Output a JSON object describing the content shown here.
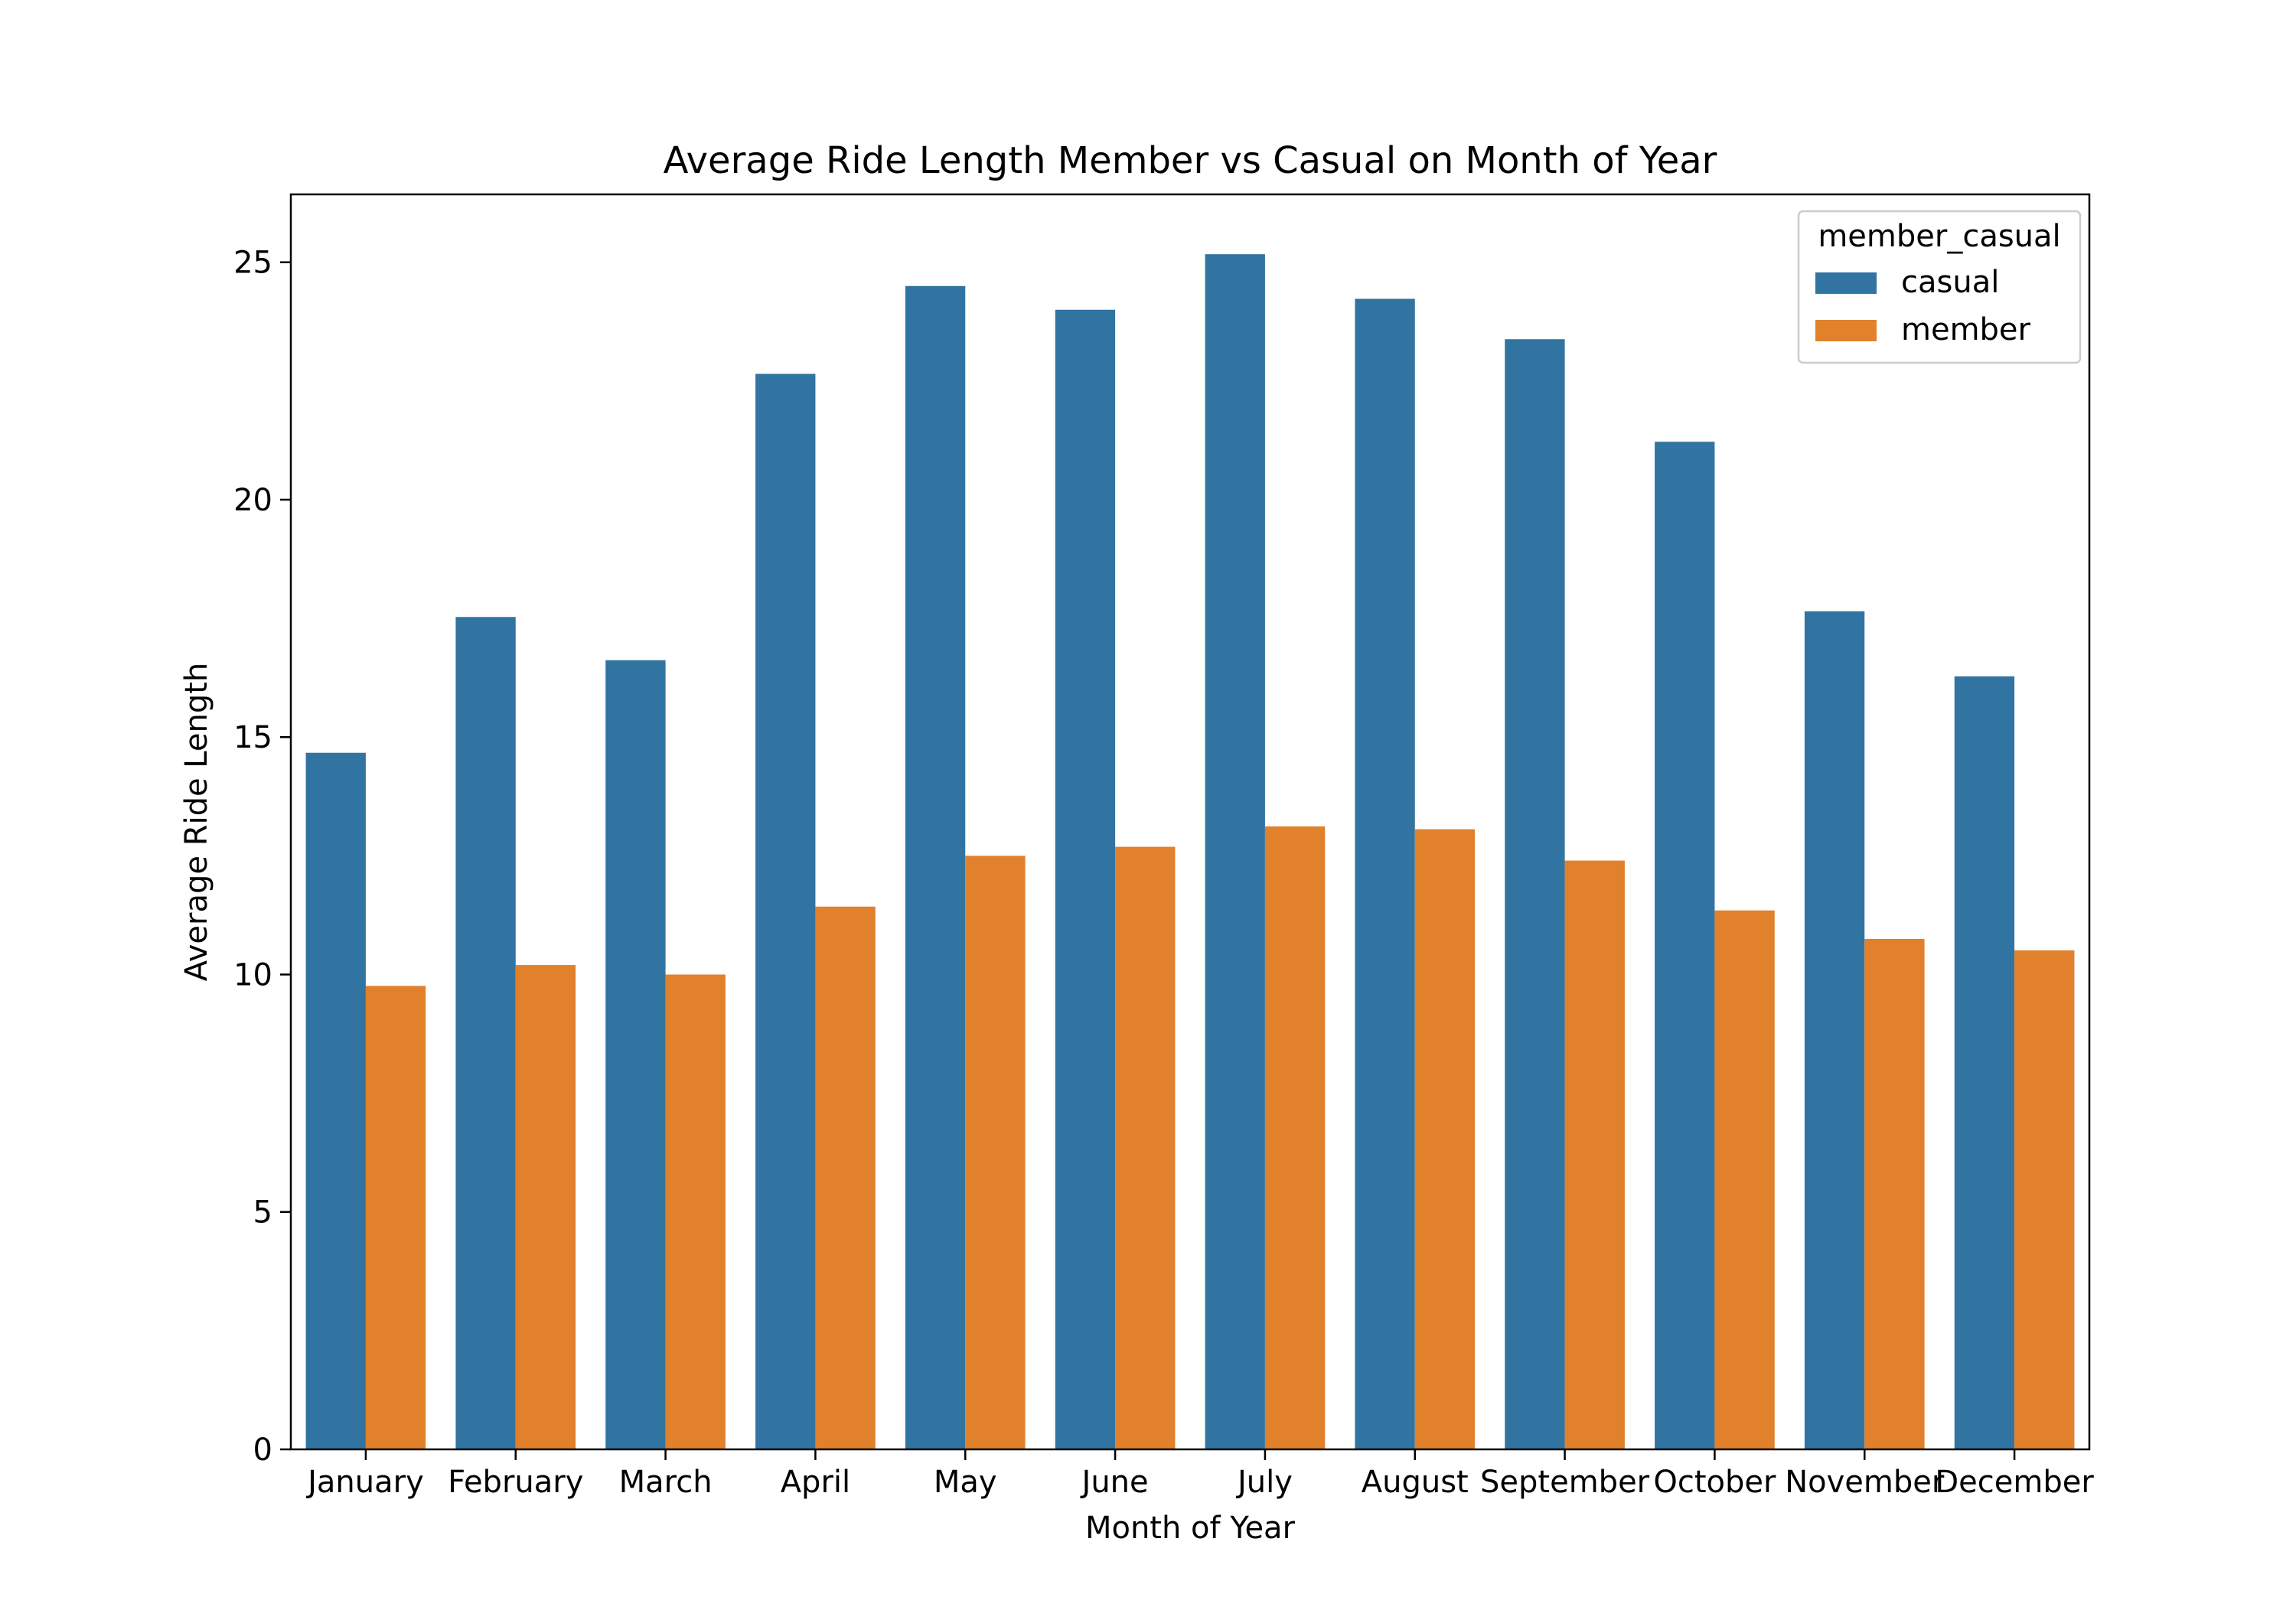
{
  "chart_data": {
    "type": "bar",
    "title": "Average Ride Length Member vs Casual on Month of Year",
    "xlabel": "Month of Year",
    "ylabel": "Average Ride Length",
    "categories": [
      "January",
      "February",
      "March",
      "April",
      "May",
      "June",
      "July",
      "August",
      "September",
      "October",
      "November",
      "December"
    ],
    "series": [
      {
        "name": "casual",
        "color": "#3274a1",
        "values": [
          14.67,
          17.53,
          16.62,
          22.65,
          24.5,
          24.0,
          25.17,
          24.23,
          23.38,
          21.22,
          17.65,
          16.28
        ]
      },
      {
        "name": "member",
        "color": "#e1812c",
        "values": [
          9.76,
          10.2,
          10.0,
          11.43,
          12.5,
          12.69,
          13.12,
          13.06,
          12.4,
          11.35,
          10.75,
          10.51
        ]
      }
    ],
    "ylim": [
      0,
      26.43
    ],
    "yticks": [
      0,
      5,
      10,
      15,
      20,
      25
    ],
    "grid": false,
    "legend": {
      "title": "member_casual",
      "position": "top-right"
    }
  }
}
